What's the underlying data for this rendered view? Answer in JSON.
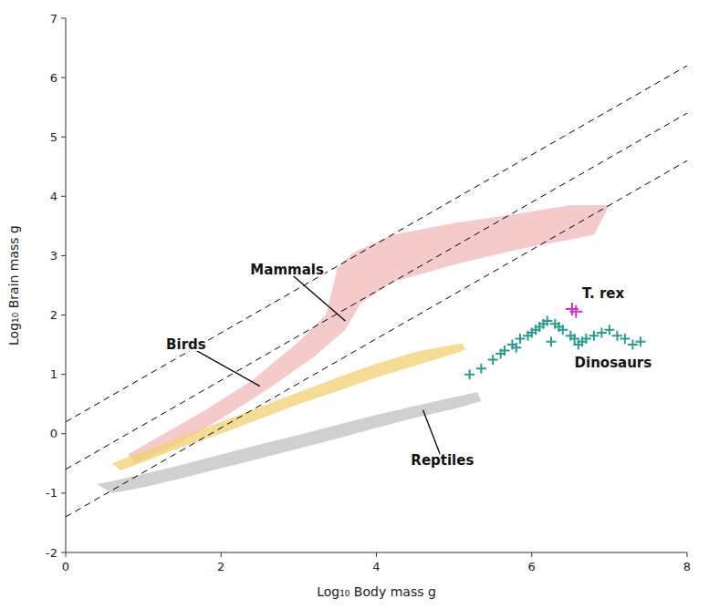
{
  "chart_data": {
    "type": "scatter",
    "xlabel": "Log₁₀ Body mass g",
    "ylabel": "Log₁₀ Brain mass g",
    "xlim": [
      0,
      8
    ],
    "ylim": [
      -2,
      7
    ],
    "xticks": [
      0,
      2,
      4,
      6,
      8
    ],
    "yticks": [
      -2,
      -1,
      0,
      1,
      2,
      3,
      4,
      5,
      6,
      7
    ],
    "series": [
      {
        "type": "polygon",
        "color": "#c0c0c0",
        "x": [
          0.4,
          0.6,
          1.0,
          1.5,
          2.0,
          2.5,
          3.0,
          3.5,
          4.0,
          4.5,
          5.0,
          5.3,
          5.35,
          5.0,
          4.5,
          4.0,
          3.5,
          3.0,
          2.5,
          2.0,
          1.5,
          1.0,
          0.6,
          0.4
        ],
        "y": [
          -0.85,
          -0.8,
          -0.68,
          -0.52,
          -0.35,
          -0.18,
          -0.02,
          0.15,
          0.32,
          0.47,
          0.62,
          0.7,
          0.55,
          0.42,
          0.27,
          0.1,
          -0.08,
          -0.25,
          -0.42,
          -0.58,
          -0.75,
          -0.9,
          -1.0,
          -0.85
        ]
      },
      {
        "type": "polygon",
        "color": "#f2b8b8",
        "x": [
          0.8,
          1.2,
          1.8,
          2.4,
          3.0,
          3.35,
          3.5,
          3.7,
          4.2,
          5.0,
          5.8,
          6.5,
          7.0,
          6.8,
          5.8,
          5.0,
          4.2,
          3.8,
          3.6,
          3.2,
          2.6,
          2.0,
          1.4,
          0.9,
          0.8
        ],
        "y": [
          -0.35,
          -0.05,
          0.4,
          0.9,
          1.55,
          2.0,
          2.8,
          3.05,
          3.35,
          3.55,
          3.7,
          3.85,
          3.85,
          3.35,
          3.1,
          2.85,
          2.55,
          2.2,
          1.75,
          1.3,
          0.75,
          0.25,
          -0.2,
          -0.5,
          -0.35
        ]
      },
      {
        "type": "polygon",
        "color": "#f0d070",
        "x": [
          0.6,
          0.75,
          1.0,
          1.5,
          2.0,
          2.5,
          3.0,
          3.5,
          4.0,
          4.5,
          5.0,
          5.1,
          5.15,
          5.0,
          4.5,
          4.0,
          3.5,
          3.0,
          2.5,
          2.0,
          1.5,
          1.0,
          0.7,
          0.6
        ],
        "y": [
          -0.5,
          -0.42,
          -0.3,
          -0.05,
          0.2,
          0.45,
          0.7,
          0.95,
          1.18,
          1.38,
          1.5,
          1.52,
          1.42,
          1.35,
          1.15,
          0.95,
          0.72,
          0.5,
          0.25,
          0.0,
          -0.22,
          -0.48,
          -0.62,
          -0.5
        ]
      },
      {
        "type": "line",
        "line_style": "dashed",
        "color": "#000000",
        "x": [
          0.0,
          8.0
        ],
        "y": [
          -0.6,
          5.4
        ]
      },
      {
        "type": "line",
        "line_style": "dashed",
        "color": "#000000",
        "x": [
          0.0,
          8.0
        ],
        "y": [
          -1.4,
          4.6
        ]
      },
      {
        "type": "line",
        "line_style": "dashed",
        "color": "#000000",
        "x": [
          0.0,
          8.0
        ],
        "y": [
          0.2,
          6.2
        ]
      },
      {
        "type": "scatter",
        "marker": "plus",
        "color": "#2a9d8f",
        "x": [
          5.2,
          5.35,
          5.5,
          5.6,
          5.65,
          5.75,
          5.85,
          5.95,
          6.05,
          6.1,
          6.15,
          6.2,
          6.3,
          6.35,
          6.4,
          6.5,
          6.55,
          6.65,
          6.7,
          6.8,
          6.9,
          7.0,
          7.1,
          7.2,
          7.4,
          5.8,
          6.0,
          6.25,
          6.6,
          7.3
        ],
        "y": [
          1.0,
          1.1,
          1.25,
          1.35,
          1.4,
          1.5,
          1.6,
          1.65,
          1.75,
          1.8,
          1.85,
          1.9,
          1.85,
          1.8,
          1.75,
          1.65,
          1.6,
          1.55,
          1.6,
          1.65,
          1.7,
          1.75,
          1.65,
          1.6,
          1.55,
          1.45,
          1.7,
          1.55,
          1.5,
          1.5
        ]
      },
      {
        "type": "scatter",
        "marker": "plus",
        "color": "#cc33cc",
        "x": [
          6.52,
          6.57
        ],
        "y": [
          2.1,
          2.06
        ]
      }
    ],
    "annotations": [
      {
        "text": "Mammals",
        "x": 3.6,
        "y": 1.9,
        "text_x": 2.85,
        "text_y": 2.75
      },
      {
        "text": "Birds",
        "x": 2.5,
        "y": 0.8,
        "text_x": 1.55,
        "text_y": 1.5
      },
      {
        "text": "Reptiles",
        "x": 4.6,
        "y": 0.4,
        "text_x": 4.85,
        "text_y": -0.45
      },
      {
        "text": "Dinosaurs",
        "x": 6.55,
        "y": 1.12
      },
      {
        "text": "T. rex",
        "x": 6.65,
        "y": 2.28
      }
    ]
  }
}
